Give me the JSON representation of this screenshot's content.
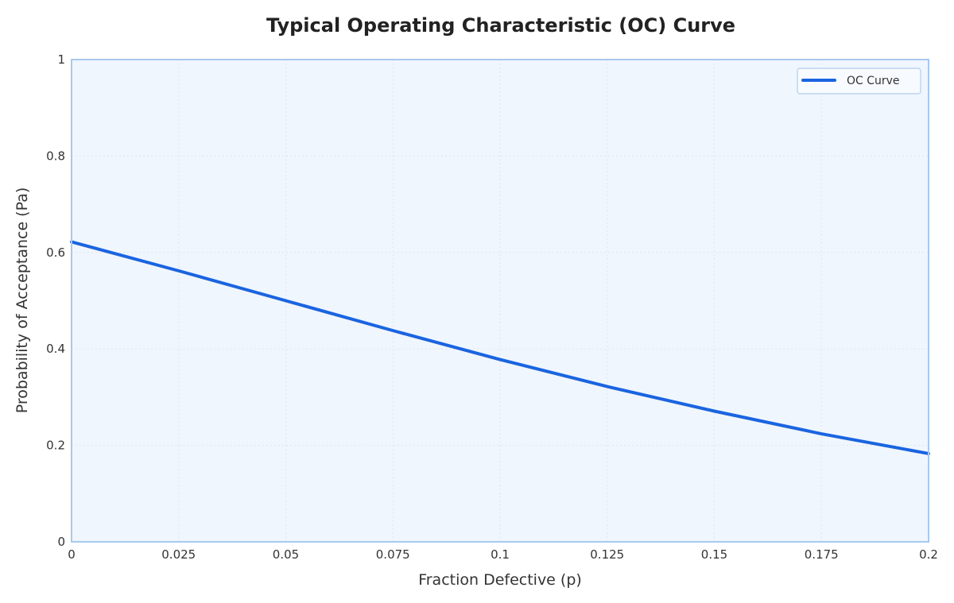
{
  "chart_data": {
    "type": "line",
    "title": "Typical Operating Characteristic (OC) Curve",
    "xlabel": "Fraction Defective (p)",
    "ylabel": "Probability of Acceptance (Pa)",
    "xlim": [
      0,
      0.2
    ],
    "ylim": [
      0,
      1
    ],
    "xticks": [
      0,
      0.025,
      0.05,
      0.075,
      0.1,
      0.125,
      0.15,
      0.175,
      0.2
    ],
    "xtick_labels": [
      "0",
      "0.025",
      "0.05",
      "0.075",
      "0.1",
      "0.125",
      "0.15",
      "0.175",
      "0.2"
    ],
    "yticks": [
      0,
      0.2,
      0.4,
      0.6,
      0.8,
      1
    ],
    "ytick_labels": [
      "0",
      "0.2",
      "0.4",
      "0.6",
      "0.8",
      "1"
    ],
    "grid": true,
    "legend_position": "top-right",
    "series": [
      {
        "name": "OC Curve",
        "color": "#1a64e0",
        "x": [
          0,
          0.025,
          0.05,
          0.075,
          0.1,
          0.125,
          0.15,
          0.175,
          0.2
        ],
        "y": [
          0.622,
          0.562,
          0.5,
          0.438,
          0.378,
          0.322,
          0.271,
          0.224,
          0.183
        ]
      }
    ]
  },
  "colors": {
    "plot_background": "#f0f6fd",
    "plot_border": "#a8c8ef",
    "line": "#1a64e0"
  }
}
